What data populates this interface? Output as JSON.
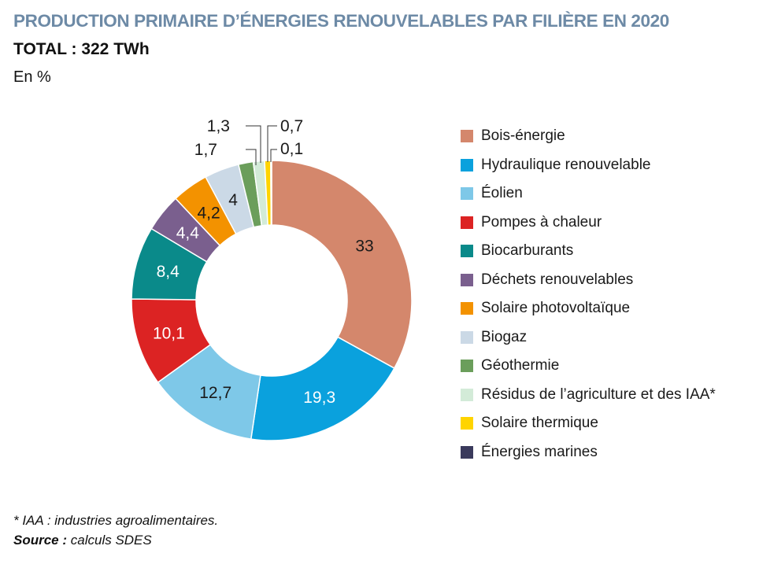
{
  "title": "PRODUCTION PRIMAIRE D’ÉNERGIES RENOUVELABLES PAR FILIÈRE EN 2020",
  "subtitle": "TOTAL : 322 TWh",
  "unit": "En %",
  "footnote": "* IAA : industries agroalimentaires.",
  "source_label": "Source :",
  "source_text": " calculs SDES",
  "chart_data": {
    "type": "pie",
    "title": "PRODUCTION PRIMAIRE D’ÉNERGIES RENOUVELABLES PAR FILIÈRE EN 2020",
    "subtitle": "TOTAL : 322 TWh",
    "unit": "En %",
    "legend_position": "right",
    "series": [
      {
        "name": "Bois-énergie",
        "value": 33,
        "label": "33",
        "color": "#d4876c"
      },
      {
        "name": "Hydraulique renouvelable",
        "value": 19.3,
        "label": "19,3",
        "color": "#0aa1dd"
      },
      {
        "name": "Éolien",
        "value": 12.7,
        "label": "12,7",
        "color": "#7ec8e8"
      },
      {
        "name": "Pompes à chaleur",
        "value": 10.1,
        "label": "10,1",
        "color": "#dc2323"
      },
      {
        "name": "Biocarburants",
        "value": 8.4,
        "label": "8,4",
        "color": "#0a8a8a"
      },
      {
        "name": "Déchets renouvelables",
        "value": 4.4,
        "label": "4,4",
        "color": "#7a5f8e"
      },
      {
        "name": "Solaire photovoltaïque",
        "value": 4.2,
        "label": "4,2",
        "color": "#f39200"
      },
      {
        "name": "Biogaz",
        "value": 4,
        "label": "4",
        "color": "#cbd9e6"
      },
      {
        "name": "Géothermie",
        "value": 1.7,
        "label": "1,7",
        "color": "#6b9e5b"
      },
      {
        "name": "Résidus de l’agriculture et des IAA*",
        "value": 1.3,
        "label": "1,3",
        "color": "#d3ebd8"
      },
      {
        "name": "Solaire thermique",
        "value": 0.7,
        "label": "0,7",
        "color": "#ffd400"
      },
      {
        "name": "Énergies marines",
        "value": 0.1,
        "label": "0,1",
        "color": "#3a3a5c"
      }
    ]
  }
}
